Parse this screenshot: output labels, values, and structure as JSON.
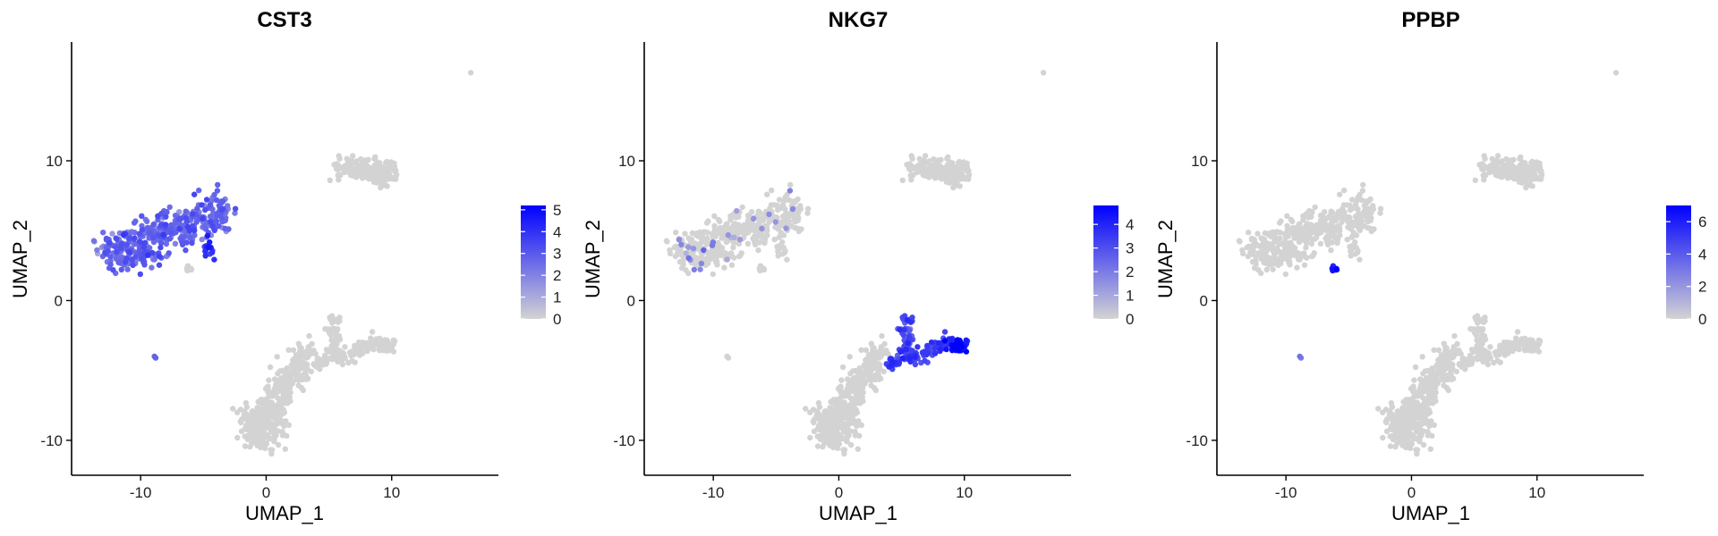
{
  "chart_data": [
    {
      "type": "scatter",
      "title": "CST3",
      "xlabel": "UMAP_1",
      "ylabel": "UMAP_2",
      "xlim": [
        -15.5,
        18.5
      ],
      "ylim": [
        -12.5,
        18.5
      ],
      "xticks": [
        -10,
        0,
        10
      ],
      "yticks": [
        -10,
        0,
        10
      ],
      "colorbar": {
        "min": 0,
        "max": 5.2,
        "ticks": [
          0,
          1,
          2,
          3,
          4,
          5
        ],
        "low_color": "#d3d3d3",
        "high_color": "#0000ff"
      },
      "grid": false,
      "legend_position": "right",
      "highlights": [
        {
          "cluster": "left_top",
          "value": 2.6
        },
        {
          "cluster": "left_small",
          "value": 4.2
        },
        {
          "cluster": "isolated_low",
          "value": 2.5
        }
      ]
    },
    {
      "type": "scatter",
      "title": "NKG7",
      "xlabel": "UMAP_1",
      "ylabel": "UMAP_2",
      "xlim": [
        -15.5,
        18.5
      ],
      "ylim": [
        -12.5,
        18.5
      ],
      "xticks": [
        -10,
        0,
        10
      ],
      "yticks": [
        -10,
        0,
        10
      ],
      "colorbar": {
        "min": 0,
        "max": 4.8,
        "ticks": [
          0,
          1,
          2,
          3,
          4
        ],
        "low_color": "#d3d3d3",
        "high_color": "#0000ff"
      },
      "grid": false,
      "legend_position": "right",
      "highlights": [
        {
          "cluster": "stem",
          "value": 3.0
        },
        {
          "cluster": "arm",
          "value": 3.4
        },
        {
          "cluster": "arm_tip",
          "value": 4.6
        },
        {
          "cluster": "left_top_sparse",
          "value": 1.5
        }
      ]
    },
    {
      "type": "scatter",
      "title": "PPBP",
      "xlabel": "UMAP_1",
      "ylabel": "UMAP_2",
      "xlim": [
        -15.5,
        18.5
      ],
      "ylim": [
        -12.5,
        18.5
      ],
      "xticks": [
        -10,
        0,
        10
      ],
      "yticks": [
        -10,
        0,
        10
      ],
      "colorbar": {
        "min": 0,
        "max": 7,
        "ticks": [
          0,
          2,
          4,
          6
        ],
        "low_color": "#d3d3d3",
        "high_color": "#0000ff"
      },
      "grid": false,
      "legend_position": "right",
      "highlights": [
        {
          "cluster": "platelet",
          "value": 6.5
        },
        {
          "cluster": "isolated_low",
          "value": 3.0
        }
      ]
    }
  ]
}
